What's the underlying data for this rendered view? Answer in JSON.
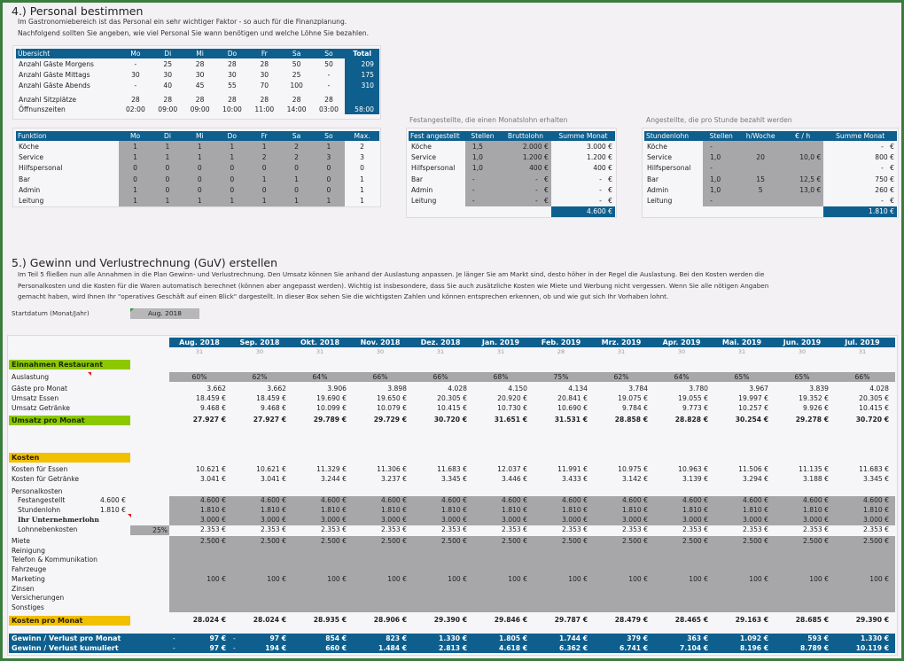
{
  "section4": {
    "title": "4.) Personal bestimmen",
    "intro": [
      "Im Gastronomiebereich ist das Personal ein sehr wichtiger Faktor - so auch für die Finanzplanung.",
      "Nachfolgend sollten Sie angeben, wie viel Personal Sie wann benötigen und welche Löhne Sie bezahlen."
    ],
    "overview": {
      "headers": [
        "Übersicht",
        "Mo",
        "Di",
        "Mi",
        "Do",
        "Fr",
        "Sa",
        "So",
        "Total"
      ],
      "rows": [
        {
          "label": "Anzahl Gäste Morgens",
          "values": [
            "-",
            "25",
            "28",
            "28",
            "28",
            "50",
            "50"
          ],
          "total": "209"
        },
        {
          "label": "Anzahl Gäste Mittags",
          "values": [
            "30",
            "30",
            "30",
            "30",
            "30",
            "25",
            "-"
          ],
          "total": "175"
        },
        {
          "label": "Anzahl Gäste Abends",
          "values": [
            "-",
            "40",
            "45",
            "55",
            "70",
            "100",
            "-"
          ],
          "total": "310"
        },
        {
          "label": "Anzahl Sitzplätze",
          "values": [
            "28",
            "28",
            "28",
            "28",
            "28",
            "28",
            "28"
          ],
          "total": ""
        },
        {
          "label": "Öffnunszeiten",
          "values": [
            "02:00",
            "09:00",
            "09:00",
            "10:00",
            "11:00",
            "14:00",
            "03:00"
          ],
          "total": "58:00"
        }
      ]
    },
    "functions": {
      "headers": [
        "Funktion",
        "Mo",
        "Di",
        "Mi",
        "Do",
        "Fr",
        "Sa",
        "So",
        "Max."
      ],
      "rows": [
        {
          "label": "Köche",
          "values": [
            "1",
            "1",
            "1",
            "1",
            "1",
            "2",
            "1"
          ],
          "max": "2"
        },
        {
          "label": "Service",
          "values": [
            "1",
            "1",
            "1",
            "1",
            "2",
            "2",
            "3"
          ],
          "max": "3"
        },
        {
          "label": "Hilfspersonal",
          "values": [
            "0",
            "0",
            "0",
            "0",
            "0",
            "0",
            "0"
          ],
          "max": "0"
        },
        {
          "label": "Bar",
          "values": [
            "0",
            "0",
            "0",
            "0",
            "1",
            "1",
            "0"
          ],
          "max": "1"
        },
        {
          "label": "Admin",
          "values": [
            "1",
            "0",
            "0",
            "0",
            "0",
            "0",
            "0"
          ],
          "max": "1"
        },
        {
          "label": "Leitung",
          "values": [
            "1",
            "1",
            "1",
            "1",
            "1",
            "1",
            "1"
          ],
          "max": "1"
        }
      ]
    },
    "fixed": {
      "caption": "Festangestellte, die einen Monatslohn erhalten",
      "headers": [
        "Fest angestellt",
        "Stellen",
        "Bruttolohn",
        "Summe Monat"
      ],
      "rows": [
        {
          "label": "Köche",
          "stellen": "1,5",
          "brutto": "2.000 €",
          "summe": "3.000 €"
        },
        {
          "label": "Service",
          "stellen": "1,0",
          "brutto": "1.200 €",
          "summe": "1.200 €"
        },
        {
          "label": "Hilfspersonal",
          "stellen": "1,0",
          "brutto": "400 €",
          "summe": "400 €"
        },
        {
          "label": "Bar",
          "stellen": "-",
          "brutto": "-   €",
          "summe": "-   €"
        },
        {
          "label": "Admin",
          "stellen": "-",
          "brutto": "-   €",
          "summe": "-   €"
        },
        {
          "label": "Leitung",
          "stellen": "-",
          "brutto": "-   €",
          "summe": "-   €"
        }
      ],
      "total": "4.600 €"
    },
    "hourly": {
      "caption": "Angestellte, die pro Stunde bezahlt werden",
      "headers": [
        "Stundenlohn",
        "Stellen",
        "h/Woche",
        "€ / h",
        "Summe Monat"
      ],
      "rows": [
        {
          "label": "Köche",
          "stellen": "-",
          "hours": "",
          "rate": "",
          "summe": "-   €"
        },
        {
          "label": "Service",
          "stellen": "1,0",
          "hours": "20",
          "rate": "10,0 €",
          "summe": "800 €"
        },
        {
          "label": "Hilfspersonal",
          "stellen": "-",
          "hours": "",
          "rate": "",
          "summe": "-   €"
        },
        {
          "label": "Bar",
          "stellen": "1,0",
          "hours": "15",
          "rate": "12,5 €",
          "summe": "750 €"
        },
        {
          "label": "Admin",
          "stellen": "1,0",
          "hours": "5",
          "rate": "13,0 €",
          "summe": "260 €"
        },
        {
          "label": "Leitung",
          "stellen": "-",
          "hours": "",
          "rate": "",
          "summe": "-   €"
        }
      ],
      "total": "1.810 €"
    }
  },
  "section5": {
    "title": "5.) Gewinn und Verlustrechnung (GuV) erstellen",
    "intro": [
      "Im Teil 5 fließen nun alle Annahmen in die Plan Gewinn- und Verlustrechnung. Den Umsatz können Sie anhand der Auslastung anpassen. Je länger Sie am Markt sind, desto höher in der Regel die Auslastung. Bei den Kosten werden die",
      "Personalkosten und die Kosten für die Waren automatisch berechnet (können aber angepasst werden). Wichtig ist insbesondere, dass Sie auch zusätzliche Kosten wie Miete und Werbung nicht vergessen. Wenn Sie alle nötigen Angaben",
      "gemacht haben, wird Ihnen Ihr \"operatives Geschäft auf einen Blick\" dargestellt. In dieser Box sehen Sie die wichtigsten Zahlen und können entsprechen erkennen, ob und wie gut sich Ihr Vorhaben lohnt."
    ],
    "start_label": "Startdatum (Monat/Jahr)",
    "start_value": "Aug. 2018"
  },
  "guv": {
    "months": [
      "Aug. 2018",
      "Sep. 2018",
      "Okt. 2018",
      "Nov. 2018",
      "Dez. 2018",
      "Jan. 2019",
      "Feb. 2019",
      "Mrz. 2019",
      "Apr. 2019",
      "Mai. 2019",
      "Jun. 2019",
      "Jul. 2019"
    ],
    "days": [
      "31",
      "30",
      "31",
      "30",
      "31",
      "31",
      "28",
      "31",
      "30",
      "31",
      "30",
      "31"
    ],
    "income_title": "Einnahmen Restaurant",
    "auslastung_label": "Auslastung",
    "auslastung": [
      "60%",
      "62%",
      "64%",
      "66%",
      "66%",
      "68%",
      "75%",
      "62%",
      "64%",
      "65%",
      "65%",
      "66%"
    ],
    "gaeste_label": "Gäste pro Monat",
    "gaeste": [
      "3.662",
      "3.662",
      "3.906",
      "3.898",
      "4.028",
      "4.150",
      "4.134",
      "3.784",
      "3.780",
      "3.967",
      "3.839",
      "4.028"
    ],
    "essen_label": "Umsatz Essen",
    "essen": [
      "18.459 €",
      "18.459 €",
      "19.690 €",
      "19.650 €",
      "20.305 €",
      "20.920 €",
      "20.841 €",
      "19.075 €",
      "19.055 €",
      "19.997 €",
      "19.352 €",
      "20.305 €"
    ],
    "getraenke_label": "Umsatz Getränke",
    "getraenke": [
      "9.468 €",
      "9.468 €",
      "10.099 €",
      "10.079 €",
      "10.415 €",
      "10.730 €",
      "10.690 €",
      "9.784 €",
      "9.773 €",
      "10.257 €",
      "9.926 €",
      "10.415 €"
    ],
    "umsatz_label": "Umsatz pro Monat",
    "umsatz": [
      "27.927 €",
      "27.927 €",
      "29.789 €",
      "29.729 €",
      "30.720 €",
      "31.651 €",
      "31.531 €",
      "28.858 €",
      "28.828 €",
      "30.254 €",
      "29.278 €",
      "30.720 €"
    ],
    "costs_title": "Kosten",
    "k_essen_label": "Kosten für Essen",
    "k_essen": [
      "10.621 €",
      "10.621 €",
      "11.329 €",
      "11.306 €",
      "11.683 €",
      "12.037 €",
      "11.991 €",
      "10.975 €",
      "10.963 €",
      "11.506 €",
      "11.135 €",
      "11.683 €"
    ],
    "k_getraenke_label": "Kosten für Getränke",
    "k_getraenke": [
      "3.041 €",
      "3.041 €",
      "3.244 €",
      "3.237 €",
      "3.345 €",
      "3.446 €",
      "3.433 €",
      "3.142 €",
      "3.139 €",
      "3.294 €",
      "3.188 €",
      "3.345 €"
    ],
    "personal_label": "Personalkosten",
    "fest_label": "Festangestellt",
    "fest_ref": "4.600 €",
    "fest": [
      "4.600 €",
      "4.600 €",
      "4.600 €",
      "4.600 €",
      "4.600 €",
      "4.600 €",
      "4.600 €",
      "4.600 €",
      "4.600 €",
      "4.600 €",
      "4.600 €",
      "4.600 €"
    ],
    "stunden_label": "Stundenlohn",
    "stunden_ref": "1.810 €",
    "stunden": [
      "1.810 €",
      "1.810 €",
      "1.810 €",
      "1.810 €",
      "1.810 €",
      "1.810 €",
      "1.810 €",
      "1.810 €",
      "1.810 €",
      "1.810 €",
      "1.810 €",
      "1.810 €"
    ],
    "unternehmer_label": "Ihr Unternehmerlohn",
    "unternehmer": [
      "3.000 €",
      "3.000 €",
      "3.000 €",
      "3.000 €",
      "3.000 €",
      "3.000 €",
      "3.000 €",
      "3.000 €",
      "3.000 €",
      "3.000 €",
      "3.000 €",
      "3.000 €"
    ],
    "nebenkosten_label": "Lohnnebenkosten",
    "nebenkosten_rate": "25%",
    "nebenkosten": [
      "2.353 €",
      "2.353 €",
      "2.353 €",
      "2.353 €",
      "2.353 €",
      "2.353 €",
      "2.353 €",
      "2.353 €",
      "2.353 €",
      "2.353 €",
      "2.353 €",
      "2.353 €"
    ],
    "other_costs": [
      {
        "label": "Miete",
        "values": [
          "2.500 €",
          "2.500 €",
          "2.500 €",
          "2.500 €",
          "2.500 €",
          "2.500 €",
          "2.500 €",
          "2.500 €",
          "2.500 €",
          "2.500 €",
          "2.500 €",
          "2.500 €"
        ]
      },
      {
        "label": "Reinigung",
        "values": [
          "",
          "",
          "",
          "",
          "",
          "",
          "",
          "",
          "",
          "",
          "",
          ""
        ]
      },
      {
        "label": "Telefon & Kommunikation",
        "values": [
          "",
          "",
          "",
          "",
          "",
          "",
          "",
          "",
          "",
          "",
          "",
          ""
        ]
      },
      {
        "label": "Fahrzeuge",
        "values": [
          "",
          "",
          "",
          "",
          "",
          "",
          "",
          "",
          "",
          "",
          "",
          ""
        ]
      },
      {
        "label": "Marketing",
        "values": [
          "100 €",
          "100 €",
          "100 €",
          "100 €",
          "100 €",
          "100 €",
          "100 €",
          "100 €",
          "100 €",
          "100 €",
          "100 €",
          "100 €"
        ]
      },
      {
        "label": "Zinsen",
        "values": [
          "",
          "",
          "",
          "",
          "",
          "",
          "",
          "",
          "",
          "",
          "",
          ""
        ]
      },
      {
        "label": "Versicherungen",
        "values": [
          "",
          "",
          "",
          "",
          "",
          "",
          "",
          "",
          "",
          "",
          "",
          ""
        ]
      },
      {
        "label": "Sonstiges",
        "values": [
          "",
          "",
          "",
          "",
          "",
          "",
          "",
          "",
          "",
          "",
          "",
          ""
        ]
      }
    ],
    "kosten_label": "Kosten pro Monat",
    "kosten": [
      "28.024 €",
      "28.024 €",
      "28.935 €",
      "28.906 €",
      "29.390 €",
      "29.846 €",
      "29.787 €",
      "28.479 €",
      "28.465 €",
      "29.163 €",
      "28.685 €",
      "29.390 €"
    ],
    "gv_label": "Gewinn / Verlust pro Monat",
    "gv_sign": [
      "-",
      "-",
      "",
      "",
      "",
      "",
      "",
      "",
      "",
      "",
      "",
      ""
    ],
    "gv": [
      "97 €",
      "97 €",
      "854 €",
      "823 €",
      "1.330 €",
      "1.805 €",
      "1.744 €",
      "379 €",
      "363 €",
      "1.092 €",
      "593 €",
      "1.330 €"
    ],
    "gvk_label": "Gewinn / Verlust kumuliert",
    "gvk_sign": [
      "-",
      "-",
      "",
      "",
      "",
      "",
      "",
      "",
      "",
      "",
      "",
      ""
    ],
    "gvk": [
      "97 €",
      "194 €",
      "660 €",
      "1.484 €",
      "2.813 €",
      "4.618 €",
      "6.362 €",
      "6.741 €",
      "7.104 €",
      "8.196 €",
      "8.789 €",
      "10.119 €"
    ]
  },
  "colors": {
    "header_blue": "#0e5f8e",
    "input_gray": "#a7a6a9",
    "income_green": "#8cc800",
    "cost_yellow": "#f1c000",
    "frame_green": "#3a7d3f"
  }
}
